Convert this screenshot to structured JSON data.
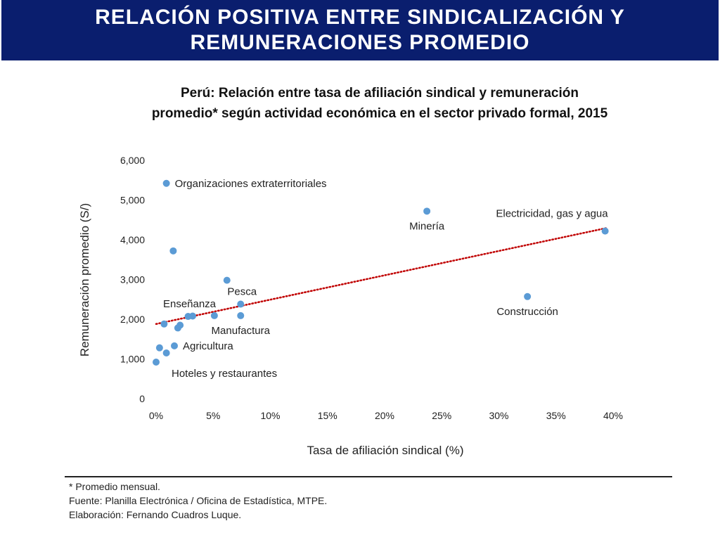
{
  "banner": {
    "title": "RELACIÓN POSITIVA ENTRE SINDICALIZACIÓN Y\nREMUNERACIONES PROMEDIO"
  },
  "chart_data": {
    "type": "scatter",
    "title": "Perú: Relación entre tasa de afiliación sindical y remuneración\npromedio* según actividad económica en el sector privado formal, 2015",
    "xlabel": "Tasa de afiliación sindical (%)",
    "ylabel": "Remuneración promedio (S/)",
    "xlim": [
      0,
      40
    ],
    "ylim": [
      0,
      6000
    ],
    "x_ticks": [
      0,
      5,
      10,
      15,
      20,
      25,
      30,
      35,
      40
    ],
    "x_tick_labels": [
      "0%",
      "5%",
      "10%",
      "15%",
      "20%",
      "25%",
      "30%",
      "35%",
      "40%"
    ],
    "y_ticks": [
      0,
      1000,
      2000,
      3000,
      4000,
      5000,
      6000
    ],
    "y_tick_labels": [
      "0",
      "1,000",
      "2,000",
      "3,000",
      "4,000",
      "5,000",
      "6,000"
    ],
    "point_color": "#5b9bd5",
    "trendline": {
      "type": "linear",
      "style": "dotted",
      "color": "#c00000",
      "x": [
        0,
        39.5
      ],
      "y": [
        1880,
        4300
      ]
    },
    "points": [
      {
        "x": 0.9,
        "y": 5420,
        "label": "Organizaciones extraterritoriales",
        "label_side": "right"
      },
      {
        "x": 1.5,
        "y": 3720,
        "label": ""
      },
      {
        "x": 23.7,
        "y": 4720,
        "label": "Minería",
        "label_side": "below"
      },
      {
        "x": 39.3,
        "y": 4220,
        "label": "Electricidad, gas y agua",
        "label_side": "above-left"
      },
      {
        "x": 6.2,
        "y": 2980,
        "label": ""
      },
      {
        "x": 7.4,
        "y": 2380,
        "label": "Pesca",
        "label_side": "above"
      },
      {
        "x": 7.4,
        "y": 2090,
        "label": "Manufactura",
        "label_side": "below"
      },
      {
        "x": 5.1,
        "y": 2090,
        "label": ""
      },
      {
        "x": 2.8,
        "y": 2070,
        "label": "Enseñanza",
        "label_side": "above"
      },
      {
        "x": 3.2,
        "y": 2080,
        "label": ""
      },
      {
        "x": 0.7,
        "y": 1880,
        "label": ""
      },
      {
        "x": 2.1,
        "y": 1850,
        "label": ""
      },
      {
        "x": 1.9,
        "y": 1780,
        "label": ""
      },
      {
        "x": 1.6,
        "y": 1330,
        "label": "Agricultura",
        "label_side": "right"
      },
      {
        "x": 0.3,
        "y": 1280,
        "label": ""
      },
      {
        "x": 0.9,
        "y": 1150,
        "label": ""
      },
      {
        "x": 0.0,
        "y": 920,
        "label": "Hoteles y restaurantes",
        "label_side": "below-right"
      },
      {
        "x": 32.5,
        "y": 2570,
        "label": "Construcción",
        "label_side": "below"
      }
    ]
  },
  "footer": {
    "lines": [
      "* Promedio mensual.",
      "Fuente: Planilla Electrónica / Oficina de Estadística, MTPE.",
      "Elaboración: Fernando Cuadros Luque."
    ]
  }
}
